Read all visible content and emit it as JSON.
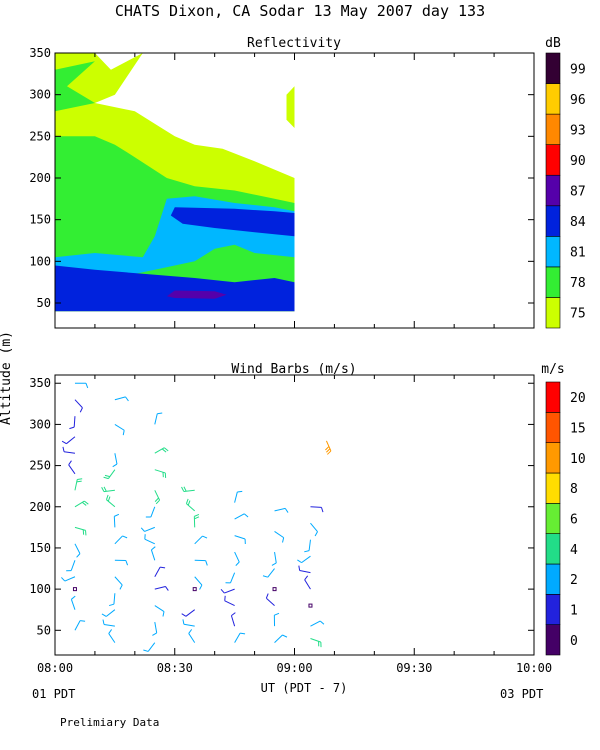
{
  "figure": {
    "title": "CHATS Dixon, CA  Sodar  13 May 2007  day 133",
    "footer": "Prelimiary Data",
    "ylabel": "Altitude (m)",
    "xlabel": "UT  (PDT - 7)",
    "x_left_label": "01 PDT",
    "x_right_label": "03 PDT"
  },
  "chart_data": [
    {
      "type": "heatmap",
      "title": "Reflectivity",
      "x_ticks": [
        "08:00",
        "08:30",
        "09:00",
        "09:30",
        "10:00"
      ],
      "xlim_minutes": [
        0,
        120
      ],
      "ylim": [
        20,
        350
      ],
      "y_ticks": [
        50,
        100,
        150,
        200,
        250,
        300,
        350
      ],
      "colorbar": {
        "unit": "dB",
        "labels": [
          "75",
          "78",
          "81",
          "84",
          "87",
          "90",
          "93",
          "96",
          "99"
        ],
        "colors": [
          "#ccff00",
          "#33ee33",
          "#00b7ff",
          "#0022dd",
          "#5500aa",
          "#ff0000",
          "#ff8800",
          "#ffcc00",
          "#330033"
        ]
      },
      "contour_bands_dB": [
        {
          "level": "75-78",
          "altitude_range": [
            40,
            350
          ],
          "time_range_minutes": [
            0,
            60
          ]
        },
        {
          "level": "78-81",
          "altitude_range": [
            40,
            330
          ],
          "time_range_minutes": [
            0,
            60
          ]
        },
        {
          "level": "81-84",
          "altitude_range": [
            40,
            175
          ],
          "time_range_minutes": [
            0,
            60
          ]
        },
        {
          "level": "84-87",
          "altitude_range": [
            40,
            165
          ],
          "time_range_minutes": [
            0,
            60
          ]
        },
        {
          "level": "87-90",
          "altitude_range": [
            55,
            65
          ],
          "time_range_minutes": [
            28,
            43
          ]
        }
      ]
    },
    {
      "type": "wind_barbs",
      "title": "Wind Barbs (m/s)",
      "x_ticks": [
        "08:00",
        "08:30",
        "09:00",
        "09:30",
        "10:00"
      ],
      "xlim_minutes": [
        0,
        120
      ],
      "ylim": [
        20,
        360
      ],
      "y_ticks": [
        50,
        100,
        150,
        200,
        250,
        300,
        350
      ],
      "colorbar": {
        "unit": "m/s",
        "labels": [
          "0",
          "1",
          "2",
          "4",
          "6",
          "8",
          "10",
          "15",
          "20"
        ],
        "colors": [
          "#440066",
          "#2222dd",
          "#00aaff",
          "#22dd88",
          "#66ee33",
          "#ffdd00",
          "#ff9900",
          "#ff5500",
          "#ff0000"
        ]
      },
      "barbs": [
        {
          "t": 5,
          "alt": 350,
          "speed": 2
        },
        {
          "t": 5,
          "alt": 330,
          "speed": 1
        },
        {
          "t": 5,
          "alt": 310,
          "speed": 1
        },
        {
          "t": 5,
          "alt": 285,
          "speed": 1
        },
        {
          "t": 5,
          "alt": 265,
          "speed": 1
        },
        {
          "t": 5,
          "alt": 240,
          "speed": 1
        },
        {
          "t": 5,
          "alt": 220,
          "speed": 4
        },
        {
          "t": 5,
          "alt": 200,
          "speed": 4
        },
        {
          "t": 5,
          "alt": 175,
          "speed": 4
        },
        {
          "t": 5,
          "alt": 155,
          "speed": 2
        },
        {
          "t": 5,
          "alt": 135,
          "speed": 2
        },
        {
          "t": 5,
          "alt": 115,
          "speed": 2
        },
        {
          "t": 5,
          "alt": 100,
          "speed": 0
        },
        {
          "t": 5,
          "alt": 75,
          "speed": 2
        },
        {
          "t": 5,
          "alt": 50,
          "speed": 2
        },
        {
          "t": 15,
          "alt": 330,
          "speed": 2
        },
        {
          "t": 15,
          "alt": 300,
          "speed": 2
        },
        {
          "t": 15,
          "alt": 265,
          "speed": 2
        },
        {
          "t": 15,
          "alt": 245,
          "speed": 4
        },
        {
          "t": 15,
          "alt": 220,
          "speed": 4
        },
        {
          "t": 15,
          "alt": 200,
          "speed": 4
        },
        {
          "t": 15,
          "alt": 175,
          "speed": 2
        },
        {
          "t": 15,
          "alt": 155,
          "speed": 2
        },
        {
          "t": 15,
          "alt": 135,
          "speed": 2
        },
        {
          "t": 15,
          "alt": 115,
          "speed": 2
        },
        {
          "t": 15,
          "alt": 95,
          "speed": 2
        },
        {
          "t": 15,
          "alt": 75,
          "speed": 2
        },
        {
          "t": 15,
          "alt": 55,
          "speed": 2
        },
        {
          "t": 15,
          "alt": 35,
          "speed": 2
        },
        {
          "t": 25,
          "alt": 300,
          "speed": 2
        },
        {
          "t": 25,
          "alt": 265,
          "speed": 4
        },
        {
          "t": 25,
          "alt": 245,
          "speed": 4
        },
        {
          "t": 25,
          "alt": 220,
          "speed": 4
        },
        {
          "t": 25,
          "alt": 200,
          "speed": 2
        },
        {
          "t": 25,
          "alt": 175,
          "speed": 2
        },
        {
          "t": 25,
          "alt": 155,
          "speed": 2
        },
        {
          "t": 25,
          "alt": 135,
          "speed": 2
        },
        {
          "t": 25,
          "alt": 115,
          "speed": 1
        },
        {
          "t": 25,
          "alt": 100,
          "speed": 1
        },
        {
          "t": 25,
          "alt": 80,
          "speed": 2
        },
        {
          "t": 25,
          "alt": 60,
          "speed": 2
        },
        {
          "t": 25,
          "alt": 35,
          "speed": 2
        },
        {
          "t": 35,
          "alt": 220,
          "speed": 4
        },
        {
          "t": 35,
          "alt": 195,
          "speed": 4
        },
        {
          "t": 35,
          "alt": 175,
          "speed": 4
        },
        {
          "t": 35,
          "alt": 155,
          "speed": 2
        },
        {
          "t": 35,
          "alt": 135,
          "speed": 2
        },
        {
          "t": 35,
          "alt": 115,
          "speed": 2
        },
        {
          "t": 35,
          "alt": 100,
          "speed": 0
        },
        {
          "t": 35,
          "alt": 75,
          "speed": 1
        },
        {
          "t": 35,
          "alt": 55,
          "speed": 2
        },
        {
          "t": 35,
          "alt": 35,
          "speed": 2
        },
        {
          "t": 45,
          "alt": 205,
          "speed": 2
        },
        {
          "t": 45,
          "alt": 185,
          "speed": 2
        },
        {
          "t": 45,
          "alt": 165,
          "speed": 2
        },
        {
          "t": 45,
          "alt": 145,
          "speed": 2
        },
        {
          "t": 45,
          "alt": 120,
          "speed": 2
        },
        {
          "t": 45,
          "alt": 100,
          "speed": 1
        },
        {
          "t": 45,
          "alt": 80,
          "speed": 1
        },
        {
          "t": 45,
          "alt": 55,
          "speed": 1
        },
        {
          "t": 45,
          "alt": 35,
          "speed": 2
        },
        {
          "t": 55,
          "alt": 195,
          "speed": 2
        },
        {
          "t": 55,
          "alt": 170,
          "speed": 2
        },
        {
          "t": 55,
          "alt": 145,
          "speed": 2
        },
        {
          "t": 55,
          "alt": 125,
          "speed": 2
        },
        {
          "t": 55,
          "alt": 100,
          "speed": 0
        },
        {
          "t": 55,
          "alt": 80,
          "speed": 1
        },
        {
          "t": 55,
          "alt": 55,
          "speed": 2
        },
        {
          "t": 55,
          "alt": 35,
          "speed": 2
        },
        {
          "t": 64,
          "alt": 200,
          "speed": 1
        },
        {
          "t": 64,
          "alt": 180,
          "speed": 2
        },
        {
          "t": 64,
          "alt": 160,
          "speed": 2
        },
        {
          "t": 64,
          "alt": 140,
          "speed": 2
        },
        {
          "t": 64,
          "alt": 120,
          "speed": 1
        },
        {
          "t": 64,
          "alt": 100,
          "speed": 1
        },
        {
          "t": 64,
          "alt": 80,
          "speed": 0
        },
        {
          "t": 64,
          "alt": 55,
          "speed": 2
        },
        {
          "t": 64,
          "alt": 40,
          "speed": 4
        },
        {
          "t": 68,
          "alt": 280,
          "speed": 10
        }
      ]
    }
  ]
}
